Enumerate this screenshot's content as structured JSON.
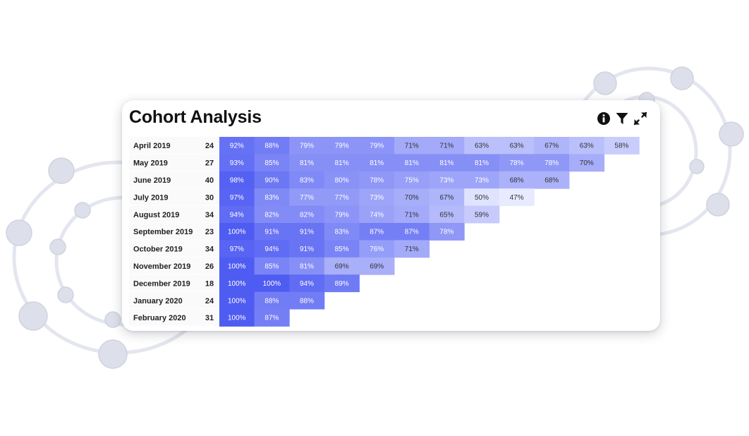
{
  "card": {
    "title": "Cohort Analysis",
    "icons": [
      "info-icon",
      "filter-icon",
      "expand-icon"
    ]
  },
  "colors": {
    "cell_max": "#4f5cf2",
    "cell_min": "#eef0ff",
    "label_bg": "#fafafa",
    "decor_ring": "#e4e6ef",
    "decor_dot": "#dde0ea"
  },
  "chart_data": {
    "type": "heatmap",
    "rows": [
      {
        "cohort": "April 2019",
        "size": "24",
        "values": [
          "92%",
          "88%",
          "79%",
          "79%",
          "79%",
          "71%",
          "71%",
          "63%",
          "63%",
          "67%",
          "63%",
          "58%"
        ]
      },
      {
        "cohort": "May 2019",
        "size": "27",
        "values": [
          "93%",
          "85%",
          "81%",
          "81%",
          "81%",
          "81%",
          "81%",
          "81%",
          "78%",
          "78%",
          "70%"
        ]
      },
      {
        "cohort": "June 2019",
        "size": "40",
        "values": [
          "98%",
          "90%",
          "83%",
          "80%",
          "78%",
          "75%",
          "73%",
          "73%",
          "68%",
          "68%"
        ]
      },
      {
        "cohort": "July 2019",
        "size": "30",
        "values": [
          "97%",
          "83%",
          "77%",
          "77%",
          "73%",
          "70%",
          "67%",
          "50%",
          "47%"
        ]
      },
      {
        "cohort": "August 2019",
        "size": "34",
        "values": [
          "94%",
          "82%",
          "82%",
          "79%",
          "74%",
          "71%",
          "65%",
          "59%"
        ]
      },
      {
        "cohort": "September 2019",
        "size": "23",
        "values": [
          "100%",
          "91%",
          "91%",
          "83%",
          "87%",
          "87%",
          "78%"
        ]
      },
      {
        "cohort": "October 2019",
        "size": "34",
        "values": [
          "97%",
          "94%",
          "91%",
          "85%",
          "76%",
          "71%"
        ]
      },
      {
        "cohort": "November 2019",
        "size": "26",
        "values": [
          "100%",
          "85%",
          "81%",
          "69%",
          "69%"
        ]
      },
      {
        "cohort": "December 2019",
        "size": "18",
        "values": [
          "100%",
          "100%",
          "94%",
          "89%"
        ]
      },
      {
        "cohort": "January 2020",
        "size": "24",
        "values": [
          "100%",
          "88%",
          "88%"
        ]
      },
      {
        "cohort": "February 2020",
        "size": "31",
        "values": [
          "100%",
          "87%"
        ]
      }
    ]
  }
}
